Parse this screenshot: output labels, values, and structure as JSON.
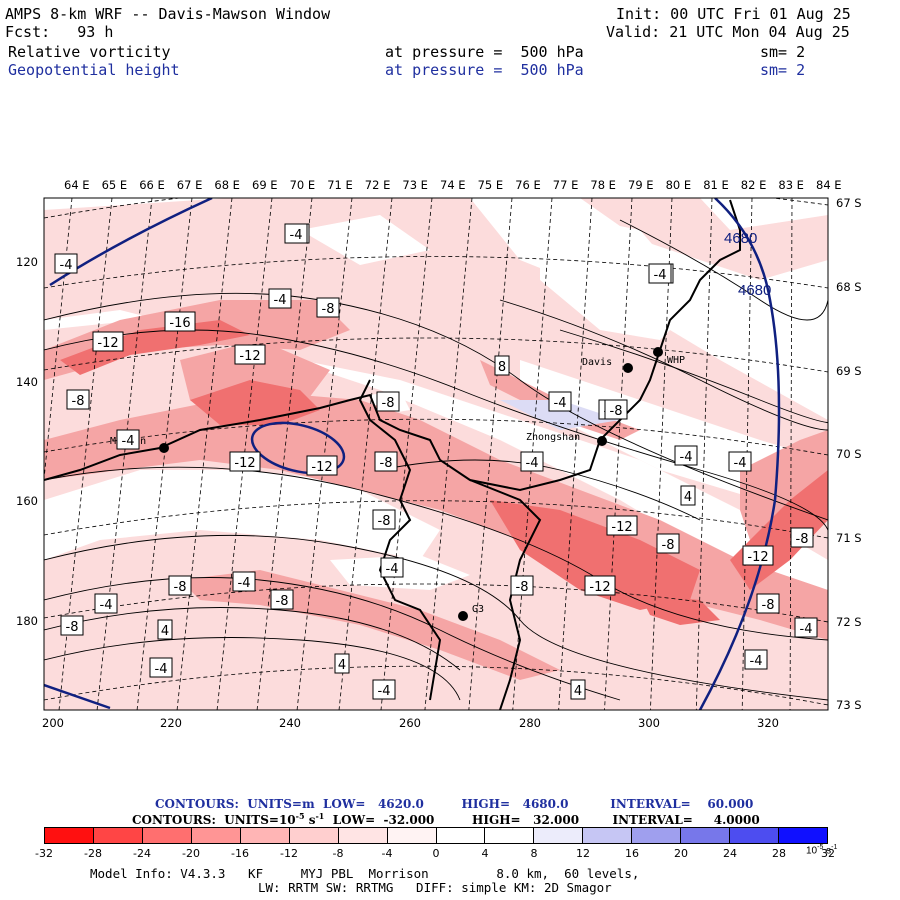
{
  "header": {
    "title": "AMPS 8-km WRF -- Davis-Mawson Window",
    "init": "Init: 00 UTC Fri 01 Aug 25",
    "fcst": "Fcst:   93 h",
    "valid": "Valid: 21 UTC Mon 04 Aug 25",
    "field1": "Relative vorticity",
    "field1_level": "at pressure =  500 hPa",
    "field1_sm": "sm= 2",
    "field2": "Geopotential height",
    "field2_level": "at pressure =  500 hPa",
    "field2_sm": "sm= 2"
  },
  "map": {
    "lon_labels": [
      "64 E",
      "65 E",
      "66 E",
      "67 E",
      "68 E",
      "69 E",
      "70 E",
      "71 E",
      "72 E",
      "73 E",
      "74 E",
      "75 E",
      "76 E",
      "77 E",
      "78 E",
      "79 E",
      "80 E",
      "81 E",
      "82 E",
      "83 E",
      "84 E"
    ],
    "lat_labels": [
      "67 S",
      "68 S",
      "69 S",
      "70 S",
      "71 S",
      "72 S",
      "73 S"
    ],
    "x_ticks": [
      "200",
      "220",
      "240",
      "260",
      "280",
      "300",
      "320"
    ],
    "y_ticks": [
      "120",
      "140",
      "160",
      "180"
    ],
    "stations": [
      {
        "name": "Davis",
        "label": "Davis"
      },
      {
        "name": "WHP",
        "label": "WHP"
      },
      {
        "name": "Zhongshan",
        "label": "Zhongshan"
      },
      {
        "name": "Mawson",
        "label": "Mawson"
      },
      {
        "name": "G3",
        "label": "G3"
      }
    ],
    "contour_labels": [
      "-4",
      "-4",
      "-4",
      "-8",
      "-16",
      "-12",
      "-12",
      "-8",
      "-8",
      "-12",
      "-12",
      "-4",
      "-8",
      "8",
      "-4",
      "-4",
      "4",
      "-8",
      "-4",
      "-4",
      "4",
      "-8",
      "-12",
      "-8",
      "-12",
      "-4",
      "-4",
      "-8",
      "-8",
      "-12",
      "-8",
      "-4",
      "-8",
      "-4",
      "-8",
      "4",
      "-4",
      "-8",
      "4",
      "-4",
      "-4",
      "-4",
      "-8",
      "-4",
      "-4"
    ],
    "height_labels": [
      "4680",
      "4680"
    ],
    "colors": {
      "neg_strong": "#f07070",
      "neg_mid": "#f5a5a5",
      "neg_weak": "#fcdcdc",
      "pos_weak": "#dcdcf5",
      "height_contour": "#102080"
    }
  },
  "footer": {
    "height_contours": "CONTOURS:  UNITS=m  LOW=   4620.0         HIGH=   4680.0          INTERVAL=    60.000",
    "vort_contours_a": "CONTOURS:  UNITS=10",
    "vort_contours_exp": "-5",
    "vort_contours_b": " s",
    "vort_contours_exp2": "-1",
    "vort_contours_c": "  LOW=  -32.000         HIGH=   32.000        INTERVAL=     4.0000",
    "colorbar_colors": [
      "#ff1010",
      "#ff4545",
      "#ff6f6f",
      "#ff9595",
      "#ffb5b5",
      "#ffcfcf",
      "#ffe4e4",
      "#fff3f3",
      "#ffffff",
      "#ffffff",
      "#ececfb",
      "#c6c6f4",
      "#9f9fee",
      "#7777ea",
      "#4d4df0",
      "#1010ff"
    ],
    "colorbar_labels": [
      "-32",
      "-28",
      "-24",
      "-20",
      "-16",
      "-12",
      "-8",
      "-4",
      "0",
      "4",
      "8",
      "12",
      "16",
      "20",
      "24",
      "28",
      "32"
    ],
    "colorbar_units": "10",
    "colorbar_units_exp": "-5",
    "colorbar_units_b": " s",
    "colorbar_units_exp2": "-1",
    "model_info_1": "Model Info: V4.3.3   KF     MYJ PBL  Morrison         8.0 km,  60 levels,",
    "model_info_2": "LW: RRTM SW: RRTMG   DIFF: simple KM: 2D Smagor"
  }
}
